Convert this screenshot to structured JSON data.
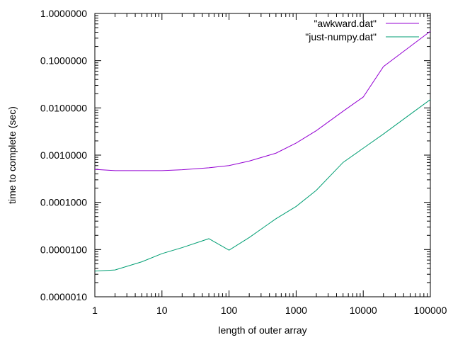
{
  "chart_data": {
    "type": "line",
    "xlabel": "length of outer array",
    "ylabel": "time to complete (sec)",
    "x_scale": "log",
    "y_scale": "log",
    "xlim": [
      1,
      100000
    ],
    "ylim": [
      1e-06,
      1
    ],
    "x_ticks": [
      {
        "value": 1,
        "label": "1"
      },
      {
        "value": 10,
        "label": "10"
      },
      {
        "value": 100,
        "label": "100"
      },
      {
        "value": 1000,
        "label": "1000"
      },
      {
        "value": 10000,
        "label": "10000"
      },
      {
        "value": 100000,
        "label": "100000"
      }
    ],
    "y_ticks": [
      {
        "value": 1e-06,
        "label": "0.0000010"
      },
      {
        "value": 1e-05,
        "label": "0.0000100"
      },
      {
        "value": 0.0001,
        "label": "0.0001000"
      },
      {
        "value": 0.001,
        "label": "0.0010000"
      },
      {
        "value": 0.01,
        "label": "0.0100000"
      },
      {
        "value": 0.1,
        "label": "0.1000000"
      },
      {
        "value": 1,
        "label": "1.0000000"
      }
    ],
    "grid": false,
    "legend_position": "top-right",
    "series": [
      {
        "name": "\"awkward.dat\"",
        "color": "#9400d3",
        "x": [
          1,
          2,
          5,
          10,
          20,
          50,
          100,
          200,
          500,
          1000,
          2000,
          5000,
          10000,
          20000,
          50000,
          100000
        ],
        "y": [
          0.0005,
          0.00047,
          0.00047,
          0.00047,
          0.00049,
          0.00054,
          0.0006,
          0.00075,
          0.0011,
          0.0018,
          0.0033,
          0.0085,
          0.017,
          0.075,
          0.2,
          0.42
        ]
      },
      {
        "name": "\"just-numpy.dat\"",
        "color": "#009e73",
        "x": [
          1,
          2,
          5,
          10,
          20,
          50,
          100,
          200,
          500,
          1000,
          2000,
          5000,
          10000,
          20000,
          50000,
          100000
        ],
        "y": [
          3.5e-06,
          3.7e-06,
          5.5e-06,
          8.2e-06,
          1.1e-05,
          1.7e-05,
          9.7e-06,
          1.8e-05,
          4.5e-05,
          8.2e-05,
          0.00018,
          0.0007,
          0.0014,
          0.0028,
          0.0073,
          0.015
        ]
      }
    ]
  }
}
